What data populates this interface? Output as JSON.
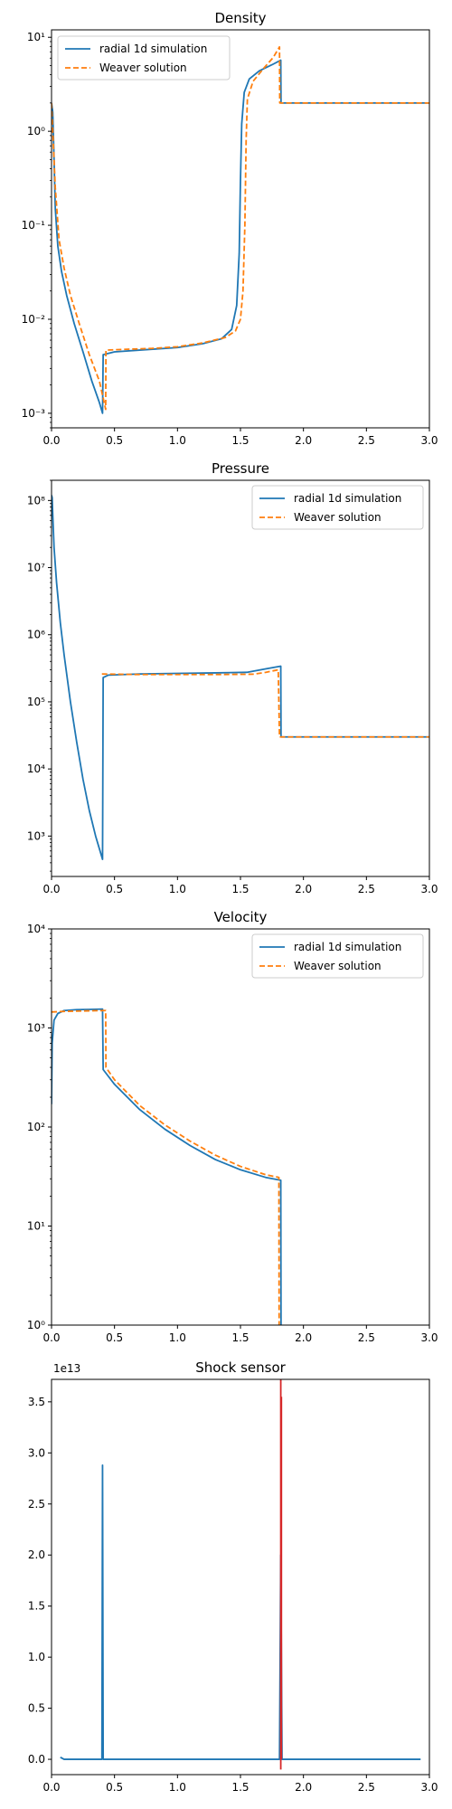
{
  "chart_data": [
    {
      "type": "line",
      "title": "Density",
      "xlabel": "",
      "ylabel": "",
      "xlim": [
        0,
        3
      ],
      "ylim": [
        0.0007,
        12
      ],
      "yscale": "log",
      "xticks": [
        0,
        0.5,
        1,
        1.5,
        2,
        2.5,
        3
      ],
      "xtick_labels": [
        "0.0",
        "0.5",
        "1.0",
        "1.5",
        "2.0",
        "2.5",
        "3.0"
      ],
      "yticks": [
        0.001,
        0.01,
        0.1,
        1,
        10
      ],
      "ytick_labels": [
        "10⁻³",
        "10⁻²",
        "10⁻¹",
        "10⁰",
        "10¹"
      ],
      "legend": {
        "loc": "upper left",
        "entries": [
          "radial 1d simulation",
          "Weaver solution"
        ]
      },
      "grid": false,
      "series": [
        {
          "name": "radial 1d simulation",
          "color": "#1f77b4",
          "dash": "solid",
          "points": [
            [
              0.0,
              2.0
            ],
            [
              0.01,
              1.6
            ],
            [
              0.02,
              0.5
            ],
            [
              0.03,
              0.15
            ],
            [
              0.05,
              0.06
            ],
            [
              0.08,
              0.032
            ],
            [
              0.12,
              0.018
            ],
            [
              0.18,
              0.009
            ],
            [
              0.25,
              0.0045
            ],
            [
              0.32,
              0.0022
            ],
            [
              0.38,
              0.0013
            ],
            [
              0.405,
              0.001
            ],
            [
              0.41,
              0.0042
            ],
            [
              0.5,
              0.0045
            ],
            [
              0.7,
              0.0047
            ],
            [
              1.0,
              0.005
            ],
            [
              1.2,
              0.0055
            ],
            [
              1.35,
              0.0062
            ],
            [
              1.43,
              0.0078
            ],
            [
              1.47,
              0.014
            ],
            [
              1.49,
              0.05
            ],
            [
              1.5,
              0.3
            ],
            [
              1.51,
              1.2
            ],
            [
              1.53,
              2.6
            ],
            [
              1.57,
              3.6
            ],
            [
              1.65,
              4.4
            ],
            [
              1.75,
              5.1
            ],
            [
              1.82,
              5.7
            ],
            [
              1.822,
              2.0
            ],
            [
              3.0,
              2.0
            ]
          ]
        },
        {
          "name": "Weaver solution",
          "color": "#ff7f0e",
          "dash": "dashed",
          "points": [
            [
              0.0,
              2.0
            ],
            [
              0.01,
              1.0
            ],
            [
              0.03,
              0.25
            ],
            [
              0.06,
              0.07
            ],
            [
              0.1,
              0.035
            ],
            [
              0.15,
              0.018
            ],
            [
              0.22,
              0.009
            ],
            [
              0.3,
              0.0042
            ],
            [
              0.38,
              0.0022
            ],
            [
              0.43,
              0.0011
            ],
            [
              0.432,
              0.0047
            ],
            [
              0.6,
              0.0048
            ],
            [
              0.8,
              0.0049
            ],
            [
              1.0,
              0.0051
            ],
            [
              1.2,
              0.0056
            ],
            [
              1.38,
              0.0064
            ],
            [
              1.46,
              0.0075
            ],
            [
              1.5,
              0.01
            ],
            [
              1.52,
              0.02
            ],
            [
              1.535,
              0.1
            ],
            [
              1.545,
              0.8
            ],
            [
              1.555,
              2.2
            ],
            [
              1.6,
              3.4
            ],
            [
              1.68,
              4.6
            ],
            [
              1.76,
              6.1
            ],
            [
              1.81,
              7.9
            ],
            [
              1.812,
              2.0
            ],
            [
              3.0,
              2.0
            ]
          ]
        }
      ]
    },
    {
      "type": "line",
      "title": "Pressure",
      "xlabel": "",
      "ylabel": "",
      "xlim": [
        0,
        3
      ],
      "ylim": [
        250,
        200000000
      ],
      "yscale": "log",
      "xticks": [
        0,
        0.5,
        1,
        1.5,
        2,
        2.5,
        3
      ],
      "xtick_labels": [
        "0.0",
        "0.5",
        "1.0",
        "1.5",
        "2.0",
        "2.5",
        "3.0"
      ],
      "yticks": [
        1000,
        10000,
        100000,
        1000000,
        10000000,
        100000000
      ],
      "ytick_labels": [
        "10³",
        "10⁴",
        "10⁵",
        "10⁶",
        "10⁷",
        "10⁸"
      ],
      "legend": {
        "loc": "upper right",
        "entries": [
          "radial 1d simulation",
          "Weaver solution"
        ]
      },
      "grid": false,
      "series": [
        {
          "name": "radial 1d simulation",
          "color": "#1f77b4",
          "dash": "solid",
          "points": [
            [
              0.0,
              120000000
            ],
            [
              0.005,
              110000000
            ],
            [
              0.01,
              60000000
            ],
            [
              0.02,
              20000000
            ],
            [
              0.04,
              6000000
            ],
            [
              0.07,
              1500000
            ],
            [
              0.1,
              500000
            ],
            [
              0.15,
              100000
            ],
            [
              0.2,
              25000
            ],
            [
              0.25,
              7000
            ],
            [
              0.3,
              2400
            ],
            [
              0.35,
              1000
            ],
            [
              0.405,
              450
            ],
            [
              0.41,
              230000
            ],
            [
              0.45,
              250000
            ],
            [
              0.7,
              260000
            ],
            [
              1.0,
              265000
            ],
            [
              1.3,
              270000
            ],
            [
              1.55,
              275000
            ],
            [
              1.7,
              310000
            ],
            [
              1.82,
              340000
            ],
            [
              1.822,
              30000
            ],
            [
              3.0,
              30000
            ]
          ]
        },
        {
          "name": "Weaver solution",
          "color": "#ff7f0e",
          "dash": "dashed",
          "points": [
            [
              0.4,
              260000
            ],
            [
              0.7,
              255000
            ],
            [
              1.0,
              255000
            ],
            [
              1.3,
              255000
            ],
            [
              1.6,
              258000
            ],
            [
              1.7,
              275000
            ],
            [
              1.8,
              300000
            ],
            [
              1.81,
              30000
            ],
            [
              3.0,
              30000
            ]
          ]
        }
      ]
    },
    {
      "type": "line",
      "title": "Velocity",
      "xlabel": "",
      "ylabel": "",
      "xlim": [
        0,
        3
      ],
      "ylim": [
        1,
        10000
      ],
      "yscale": "log",
      "xticks": [
        0,
        0.5,
        1,
        1.5,
        2,
        2.5,
        3
      ],
      "xtick_labels": [
        "0.0",
        "0.5",
        "1.0",
        "1.5",
        "2.0",
        "2.5",
        "3.0"
      ],
      "yticks": [
        1,
        10,
        100,
        1000,
        10000
      ],
      "ytick_labels": [
        "10⁰",
        "10¹",
        "10²",
        "10³",
        "10⁴"
      ],
      "legend": {
        "loc": "upper right",
        "entries": [
          "radial 1d simulation",
          "Weaver solution"
        ]
      },
      "grid": false,
      "series": [
        {
          "name": "radial 1d simulation",
          "color": "#1f77b4",
          "dash": "solid",
          "points": [
            [
              0.0,
              170
            ],
            [
              0.005,
              700
            ],
            [
              0.02,
              1200
            ],
            [
              0.05,
              1400
            ],
            [
              0.1,
              1500
            ],
            [
              0.2,
              1530
            ],
            [
              0.3,
              1540
            ],
            [
              0.405,
              1550
            ],
            [
              0.41,
              380
            ],
            [
              0.5,
              270
            ],
            [
              0.7,
              150
            ],
            [
              0.9,
              95
            ],
            [
              1.1,
              65
            ],
            [
              1.3,
              47
            ],
            [
              1.5,
              37
            ],
            [
              1.7,
              31
            ],
            [
              1.82,
              29
            ],
            [
              1.822,
              1
            ]
          ]
        },
        {
          "name": "Weaver solution",
          "color": "#ff7f0e",
          "dash": "dashed",
          "points": [
            [
              0.0,
              1450
            ],
            [
              0.1,
              1470
            ],
            [
              0.2,
              1480
            ],
            [
              0.3,
              1490
            ],
            [
              0.43,
              1500
            ],
            [
              0.432,
              400
            ],
            [
              0.5,
              300
            ],
            [
              0.7,
              165
            ],
            [
              0.9,
              105
            ],
            [
              1.1,
              72
            ],
            [
              1.3,
              52
            ],
            [
              1.5,
              40
            ],
            [
              1.7,
              33
            ],
            [
              1.805,
              31
            ],
            [
              1.807,
              1
            ]
          ]
        }
      ]
    },
    {
      "type": "line",
      "title": "Shock sensor",
      "xlabel": "",
      "ylabel": "",
      "xlim": [
        0,
        3
      ],
      "ylim": [
        -0.15,
        3.72
      ],
      "yscale": "linear",
      "offset_label": "1e13",
      "xticks": [
        0,
        0.5,
        1,
        1.5,
        2,
        2.5,
        3
      ],
      "xtick_labels": [
        "0.0",
        "0.5",
        "1.0",
        "1.5",
        "2.0",
        "2.5",
        "3.0"
      ],
      "yticks": [
        0,
        0.5,
        1,
        1.5,
        2,
        2.5,
        3,
        3.5
      ],
      "ytick_labels": [
        "0.0",
        "0.5",
        "1.0",
        "1.5",
        "2.0",
        "2.5",
        "3.0",
        "3.5"
      ],
      "legend": null,
      "grid": false,
      "series": [
        {
          "color": "#1f77b4",
          "dash": "solid",
          "points": [
            [
              0.07,
              0.02
            ],
            [
              0.1,
              0.0
            ],
            [
              0.4,
              0.0
            ],
            [
              0.405,
              2.88
            ],
            [
              0.41,
              0.0
            ],
            [
              1.81,
              0.0
            ],
            [
              1.82,
              2.0
            ],
            [
              1.83,
              0.0
            ],
            [
              2.93,
              0.0
            ]
          ]
        },
        {
          "color": "#d62728",
          "dash": "solid",
          "points": [
            [
              1.82,
              -0.1
            ],
            [
              1.82,
              3.72
            ]
          ]
        },
        {
          "color": "#d62728",
          "dash": "solid",
          "points": [
            [
              1.825,
              3.55
            ],
            [
              1.825,
              0.0
            ]
          ]
        }
      ]
    }
  ]
}
